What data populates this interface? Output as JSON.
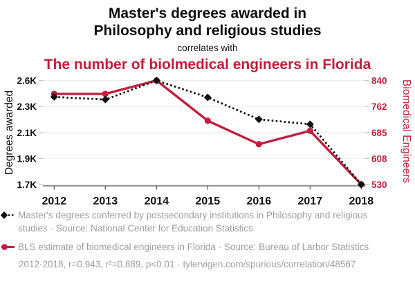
{
  "header": {
    "title_line1": "Master's degrees awarded in",
    "title_line2": "Philosophy and religious studies",
    "connector": "correlates with",
    "subtitle": "The number of biolmedical engineers in Florida"
  },
  "chart_data": {
    "type": "line",
    "title": "Master's degrees awarded in Philosophy and religious studies correlates with The number of biolmedical engineers in Florida",
    "x": [
      2012,
      2013,
      2014,
      2015,
      2016,
      2017,
      2018
    ],
    "x_tick_labels": [
      "2012",
      "2013",
      "2014",
      "2015",
      "2016",
      "2017",
      "2018"
    ],
    "series": [
      {
        "name": "Master's degrees conferred by postsecondary institutions in Philosophy and religious studies",
        "axis": "left",
        "color": "#111111",
        "line_style": "dotted",
        "marker": "diamond",
        "values": [
          2418,
          2396,
          2552,
          2414,
          2235,
          2195,
          1704
        ]
      },
      {
        "name": "BLS estimate of biomedical engineers in Florida",
        "axis": "right",
        "color": "#c11f3d",
        "line_style": "solid",
        "marker": "circle",
        "values": [
          800,
          800,
          840,
          720,
          650,
          690,
          530
        ]
      }
    ],
    "left_axis": {
      "label": "Degrees awarded",
      "tick_labels": [
        "2.6K",
        "2.3K",
        "2.1K",
        "1.9K",
        "1.7K"
      ],
      "range": [
        1704,
        2552
      ]
    },
    "right_axis": {
      "label": "Biomedical Engineers",
      "tick_labels": [
        "840",
        "762",
        "685",
        "608",
        "530"
      ],
      "range": [
        530,
        840
      ]
    },
    "grid": true,
    "legend_position": "bottom"
  },
  "legend": {
    "masters": "Master's degrees conferred by postsecondary institutions in Philosophy and religious studies · Source: National Center for Education Statistics",
    "biomedical": "BLS estimate of biomedical engineers in Florida · Source: Bureau of Larbor Statistics"
  },
  "footer": {
    "stats": "2012-2018, r=0.943, r²=0.889, p<0.01 · tylervigen.com/spurious/correlation/48567"
  },
  "colors": {
    "accent_red": "#c11f3d",
    "series_black": "#111111",
    "legend_gray": "#9d9d9d",
    "grid_line": "#ebebeb",
    "axis_line": "#555555",
    "side_tick": "#c6c6c6"
  }
}
